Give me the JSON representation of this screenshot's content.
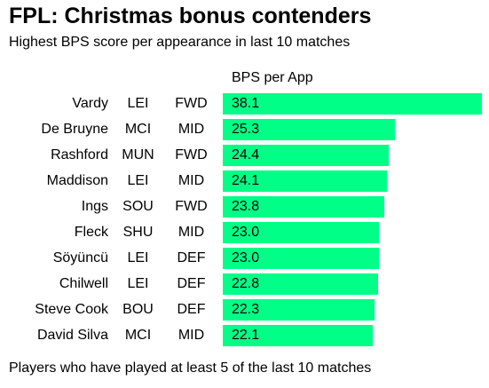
{
  "title": "FPL: Christmas bonus contenders",
  "subtitle": "Highest BPS score per appearance in last 10 matches",
  "column_header": "BPS per App",
  "footnote": "Players who have played at least 5 of the last 10 matches",
  "colors": {
    "bar": "#00ff87",
    "text": "#000000",
    "background": "#ffffff"
  },
  "chart_data": {
    "type": "bar",
    "orientation": "horizontal",
    "title": "FPL: Christmas bonus contenders",
    "subtitle": "Highest BPS score per appearance in last 10 matches",
    "value_label": "BPS per App",
    "categories": [
      "Vardy",
      "De Bruyne",
      "Rashford",
      "Maddison",
      "Ings",
      "Fleck",
      "Söyüncü",
      "Chilwell",
      "Steve Cook",
      "David Silva"
    ],
    "teams": [
      "LEI",
      "MCI",
      "MUN",
      "LEI",
      "SOU",
      "SHU",
      "LEI",
      "LEI",
      "BOU",
      "MCI"
    ],
    "positions": [
      "FWD",
      "MID",
      "FWD",
      "MID",
      "FWD",
      "MID",
      "DEF",
      "DEF",
      "DEF",
      "MID"
    ],
    "values": [
      "38.1",
      "25.3",
      "24.4",
      "24.1",
      "23.8",
      "23.0",
      "23.0",
      "22.8",
      "22.3",
      "22.1"
    ],
    "xlim": [
      0,
      38.1
    ],
    "legend": "none",
    "grid": false
  }
}
